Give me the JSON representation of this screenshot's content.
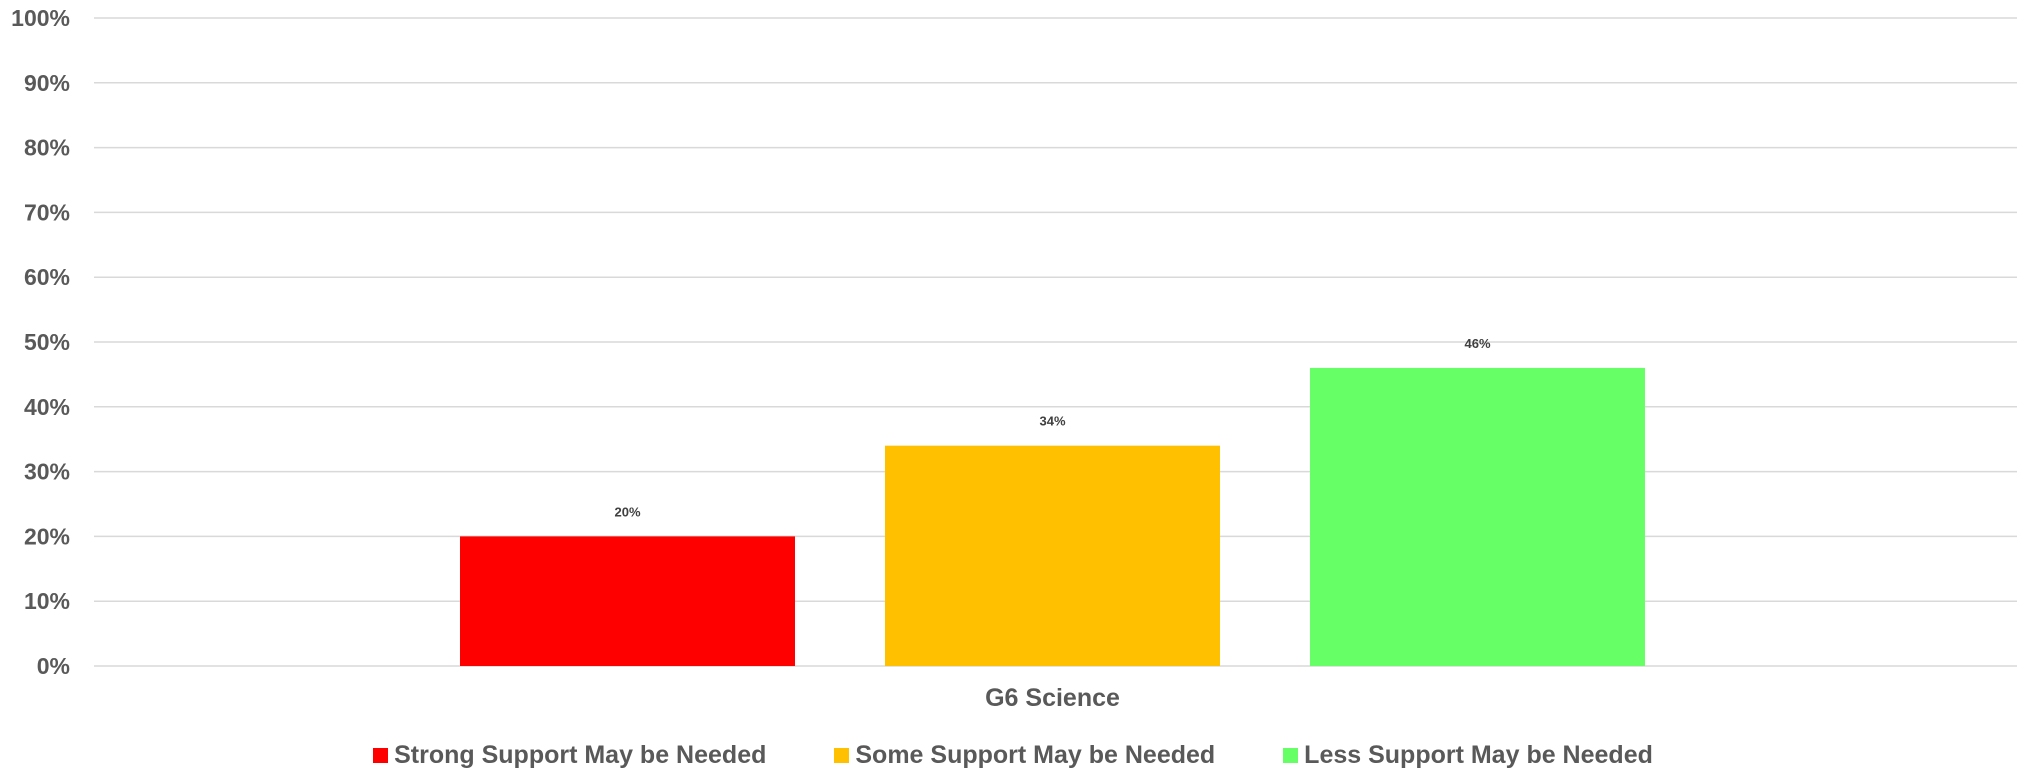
{
  "chart_data": {
    "type": "bar",
    "categories": [
      "G6 Science"
    ],
    "series": [
      {
        "name": "Strong Support May be Needed",
        "values": [
          20
        ],
        "color": "#FF0000",
        "label": "20%"
      },
      {
        "name": "Some Support May be Needed",
        "values": [
          34
        ],
        "color": "#FFC000",
        "label": "34%"
      },
      {
        "name": "Less Support May be Needed",
        "values": [
          46
        ],
        "color": "#66FF66",
        "label": "46%"
      }
    ],
    "ylim": [
      0,
      100
    ],
    "yticks": [
      0,
      10,
      20,
      30,
      40,
      50,
      60,
      70,
      80,
      90,
      100
    ],
    "ytick_labels": [
      "0%",
      "10%",
      "20%",
      "30%",
      "40%",
      "50%",
      "60%",
      "70%",
      "80%",
      "90%",
      "100%"
    ],
    "grid": true,
    "legend_position": "bottom",
    "title": "",
    "xlabel": "",
    "ylabel": ""
  }
}
